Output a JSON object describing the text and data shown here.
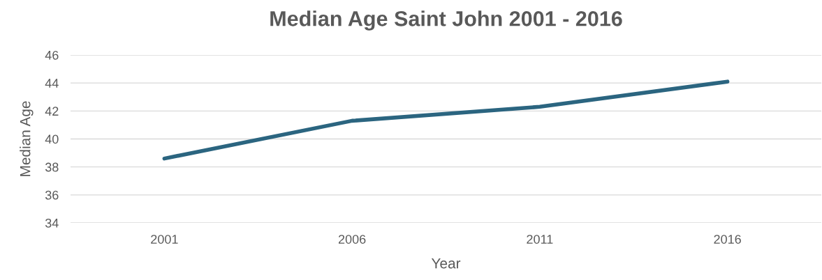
{
  "chart_data": {
    "type": "line",
    "title": "Median Age Saint John 2001 - 2016",
    "xlabel": "Year",
    "ylabel": "Median Age",
    "categories": [
      "2001",
      "2006",
      "2011",
      "2016"
    ],
    "series": [
      {
        "color": "#2b6580",
        "values": [
          38.6,
          41.3,
          42.3,
          44.1
        ]
      }
    ],
    "ylim": [
      34,
      46
    ],
    "yticks": [
      34,
      36,
      38,
      40,
      42,
      44,
      46
    ],
    "grid": "y",
    "legend": false,
    "marker": "none",
    "line_style": "solid"
  }
}
